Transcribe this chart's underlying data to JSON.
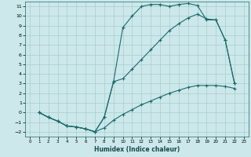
{
  "xlabel": "Humidex (Indice chaleur)",
  "bg_color": "#cce8ea",
  "grid_color": "#a8cdd0",
  "line_color": "#1a6b6b",
  "xlim": [
    -0.5,
    23.5
  ],
  "ylim": [
    -2.5,
    11.5
  ],
  "xticks": [
    0,
    1,
    2,
    3,
    4,
    5,
    6,
    7,
    8,
    9,
    10,
    11,
    12,
    13,
    14,
    15,
    16,
    17,
    18,
    19,
    20,
    21,
    22,
    23
  ],
  "yticks": [
    -2,
    -1,
    0,
    1,
    2,
    3,
    4,
    5,
    6,
    7,
    8,
    9,
    10,
    11
  ],
  "line1_x": [
    1,
    2,
    3,
    4,
    5,
    6,
    7,
    8,
    9,
    10,
    11,
    12,
    13,
    14,
    15,
    16,
    17,
    18,
    19,
    20,
    21,
    22
  ],
  "line1_y": [
    0,
    -0.5,
    -0.9,
    -1.4,
    -1.5,
    -1.7,
    -2.0,
    -0.5,
    3.2,
    8.8,
    10.0,
    11.0,
    11.2,
    11.2,
    11.0,
    11.2,
    11.3,
    11.1,
    9.6,
    9.6,
    7.5,
    3.0
  ],
  "line2_x": [
    1,
    2,
    3,
    4,
    5,
    6,
    7,
    8,
    9,
    10,
    11,
    12,
    13,
    14,
    15,
    16,
    17,
    18,
    19,
    20,
    21,
    22
  ],
  "line2_y": [
    0,
    -0.5,
    -0.9,
    -1.4,
    -1.5,
    -1.7,
    -2.0,
    -0.5,
    3.2,
    3.5,
    4.5,
    5.5,
    6.5,
    7.5,
    8.5,
    9.2,
    9.8,
    10.2,
    9.7,
    9.6,
    7.5,
    3.0
  ],
  "line3_x": [
    1,
    2,
    3,
    4,
    5,
    6,
    7,
    8,
    9,
    10,
    11,
    12,
    13,
    14,
    15,
    16,
    17,
    18,
    19,
    20,
    21,
    22
  ],
  "line3_y": [
    0,
    -0.5,
    -0.9,
    -1.4,
    -1.5,
    -1.7,
    -2.0,
    -1.6,
    -0.8,
    -0.2,
    0.3,
    0.8,
    1.2,
    1.6,
    2.0,
    2.3,
    2.6,
    2.8,
    2.8,
    2.8,
    2.7,
    2.5
  ]
}
